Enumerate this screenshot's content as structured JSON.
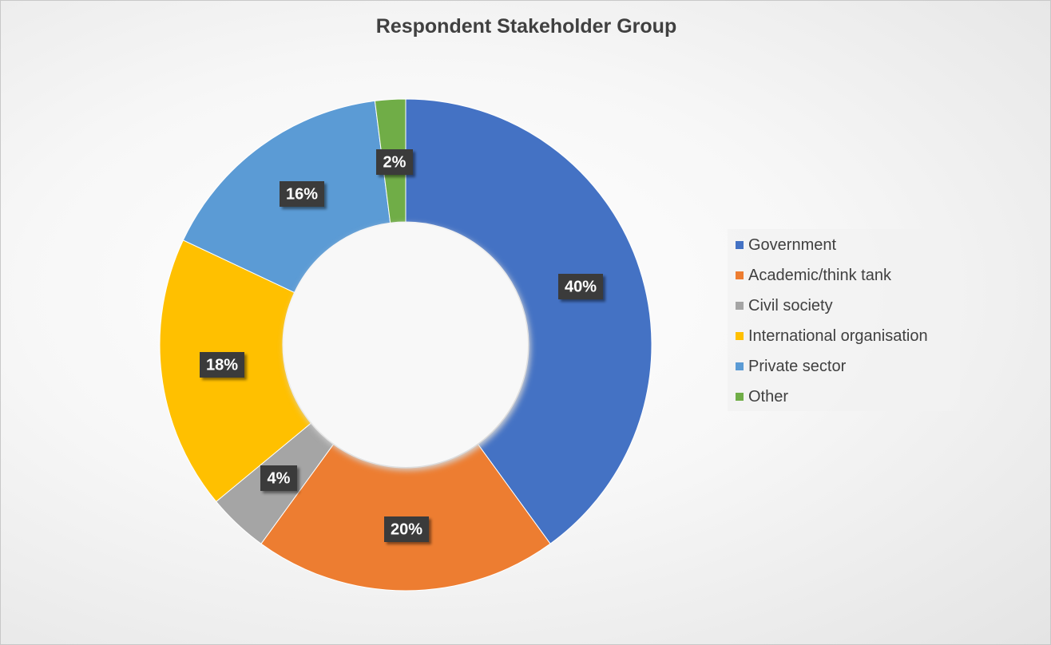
{
  "chart_data": {
    "type": "pie",
    "variant": "donut",
    "title": "Respondent Stakeholder Group",
    "series": [
      {
        "categories": [
          "Government",
          "Academic/think tank",
          "Civil society",
          "International organisation",
          "Private sector",
          "Other"
        ],
        "values": [
          40,
          20,
          4,
          18,
          16,
          2
        ],
        "labels": [
          "40%",
          "20%",
          "4%",
          "18%",
          "16%",
          "2%"
        ],
        "colors": [
          "#4472C4",
          "#ED7D31",
          "#A5A5A5",
          "#FFC000",
          "#5B9BD5",
          "#70AD47"
        ]
      }
    ],
    "legend_position": "right",
    "start": "top, clockwise"
  }
}
